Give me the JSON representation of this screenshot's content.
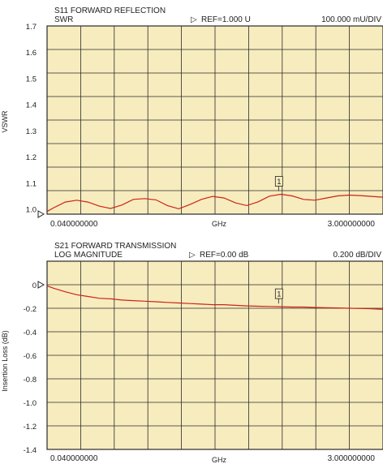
{
  "colors": {
    "plot_background": "#f7ecbe",
    "grid": "#2a2a2a",
    "trace": "#cc2418",
    "text": "#222222"
  },
  "chart_data": [
    {
      "type": "line",
      "title": "S11 FORWARD REFLECTION",
      "subtitle": "SWR",
      "reference_text": "REF=1.000 U",
      "scale_text": "100.000 mU/DIV",
      "ylabel": "VSWR",
      "xlabel": "GHz",
      "x_start_label": "0.040000000",
      "x_stop_label": "3.000000000",
      "xlim": [
        0.04,
        3.0
      ],
      "ylim": [
        1.0,
        1.7
      ],
      "grid": true,
      "yticks": [
        "1.7",
        "1.6",
        "1.5",
        "1.4",
        "1.3",
        "1.2",
        "1.1",
        "1.0"
      ],
      "reference_value": 1.0,
      "marker": {
        "label": "1",
        "x": 2.08
      },
      "series": [
        {
          "x": [
            0.04,
            0.1,
            0.2,
            0.3,
            0.4,
            0.5,
            0.6,
            0.7,
            0.8,
            0.9,
            1.0,
            1.1,
            1.2,
            1.3,
            1.4,
            1.5,
            1.6,
            1.7,
            1.8,
            1.9,
            2.0,
            2.1,
            2.2,
            2.3,
            2.4,
            2.5,
            2.6,
            2.7,
            2.8,
            2.9,
            3.0
          ],
          "y": [
            1.01,
            1.024,
            1.045,
            1.052,
            1.045,
            1.03,
            1.021,
            1.034,
            1.055,
            1.058,
            1.053,
            1.032,
            1.02,
            1.036,
            1.055,
            1.066,
            1.06,
            1.042,
            1.032,
            1.046,
            1.067,
            1.074,
            1.068,
            1.055,
            1.052,
            1.06,
            1.068,
            1.071,
            1.069,
            1.066,
            1.063
          ]
        }
      ]
    },
    {
      "type": "line",
      "title": "S21 FORWARD TRANSMISSION",
      "subtitle": "LOG MAGNITUDE",
      "reference_text": "REF=0.00 dB",
      "scale_text": "0.200  dB/DIV",
      "ylabel": "Insertion Loss (dB)",
      "xlabel": "GHz",
      "x_start_label": "0.040000000",
      "x_stop_label": "3.000000000",
      "xlim": [
        0.04,
        3.0
      ],
      "ylim": [
        -1.4,
        0.2
      ],
      "grid": true,
      "yticks": [
        "0",
        "-0.2",
        "-0.4",
        "-0.6",
        "-0.8",
        "-1.0",
        "-1.2",
        "-1.4"
      ],
      "reference_value": 0.0,
      "marker": {
        "label": "1",
        "x": 2.08
      },
      "series": [
        {
          "x": [
            0.04,
            0.1,
            0.2,
            0.3,
            0.4,
            0.5,
            0.6,
            0.7,
            0.8,
            0.9,
            1.0,
            1.1,
            1.2,
            1.3,
            1.4,
            1.5,
            1.6,
            1.7,
            1.8,
            1.9,
            2.0,
            2.1,
            2.2,
            2.3,
            2.4,
            2.5,
            2.6,
            2.7,
            2.8,
            2.9,
            3.0
          ],
          "y": [
            -0.01,
            -0.03,
            -0.06,
            -0.085,
            -0.1,
            -0.115,
            -0.12,
            -0.13,
            -0.135,
            -0.14,
            -0.145,
            -0.15,
            -0.155,
            -0.16,
            -0.165,
            -0.17,
            -0.17,
            -0.175,
            -0.18,
            -0.183,
            -0.185,
            -0.187,
            -0.19,
            -0.19,
            -0.193,
            -0.195,
            -0.197,
            -0.2,
            -0.202,
            -0.205,
            -0.21
          ]
        }
      ]
    }
  ]
}
